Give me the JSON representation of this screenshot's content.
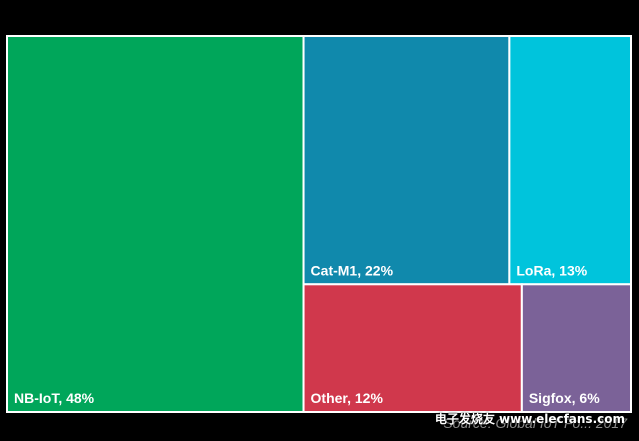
{
  "chart_data": {
    "type": "treemap",
    "title": "",
    "items": [
      {
        "name": "NB-IoT",
        "value": 48,
        "label": "NB-IoT, 48%",
        "color": "#00a65a"
      },
      {
        "name": "Cat-M1",
        "value": 22,
        "label": "Cat-M1, 22%",
        "color": "#1089ac"
      },
      {
        "name": "LoRa",
        "value": 13,
        "label": "LoRa, 13%",
        "color": "#00c4dc"
      },
      {
        "name": "Other",
        "value": 12,
        "label": "Other, 12%",
        "color": "#d0384c"
      },
      {
        "name": "Sigfox",
        "value": 6,
        "label": "Sigfox, 6%",
        "color": "#7b6298"
      }
    ],
    "background": "#000000",
    "border_color": "#ffffff"
  },
  "footer": {
    "source": "Source: Global IoT Fo...  2017",
    "watermark": "电子发烧友 www.elecfans.com"
  }
}
